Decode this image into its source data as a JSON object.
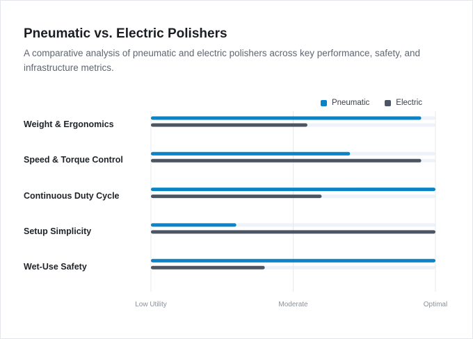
{
  "header": {
    "title": "Pneumatic vs. Electric Polishers",
    "subtitle": "A comparative analysis of pneumatic and electric polishers across key performance, safety, and infrastructure metrics."
  },
  "chart_data": {
    "type": "bar",
    "orientation": "horizontal",
    "title": "Pneumatic vs. Electric Polishers",
    "categories": [
      "Weight & Ergonomics",
      "Speed & Torque Control",
      "Continuous Duty Cycle",
      "Setup Simplicity",
      "Wet-Use Safety"
    ],
    "series": [
      {
        "name": "Pneumatic",
        "color": "#0a84c6",
        "values": [
          95,
          70,
          100,
          30,
          100
        ]
      },
      {
        "name": "Electric",
        "color": "#4b5563",
        "values": [
          55,
          95,
          60,
          100,
          40
        ]
      }
    ],
    "xlim": [
      0,
      100
    ],
    "x_tick_labels": [
      "Low Utility",
      "Moderate",
      "Optimal"
    ],
    "x_tick_values": [
      0,
      50,
      100
    ],
    "grid": true,
    "legend_position": "top-right",
    "track_color": "#eef3f9"
  }
}
